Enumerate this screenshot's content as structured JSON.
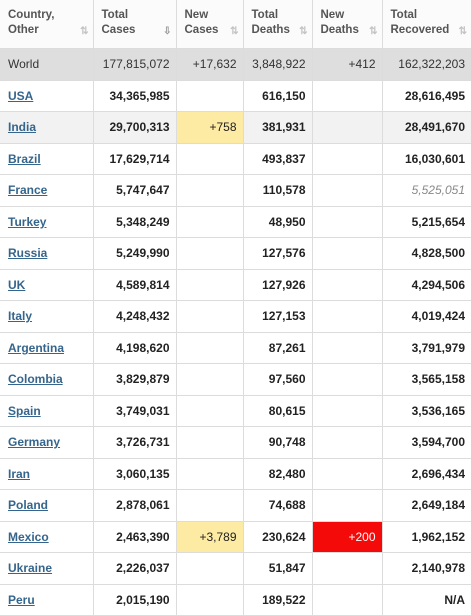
{
  "headers": [
    {
      "label": "Country,\nOther",
      "sort": "⇅",
      "active": false
    },
    {
      "label": "Total\nCases",
      "sort": "⇩",
      "active": true
    },
    {
      "label": "New\nCases",
      "sort": "⇅",
      "active": false
    },
    {
      "label": "Total\nDeaths",
      "sort": "⇅",
      "active": false
    },
    {
      "label": "New\nDeaths",
      "sort": "⇅",
      "active": false
    },
    {
      "label": "Total\nRecovered",
      "sort": "⇅",
      "active": false
    }
  ],
  "world": {
    "country": "World",
    "total_cases": "177,815,072",
    "new_cases": "+17,632",
    "total_deaths": "3,848,922",
    "new_deaths": "+412",
    "total_recovered": "162,322,203"
  },
  "rows": [
    {
      "country": "USA",
      "total_cases": "34,365,985",
      "new_cases": "",
      "total_deaths": "616,150",
      "new_deaths": "",
      "total_recovered": "28,616,495"
    },
    {
      "country": "India",
      "total_cases": "29,700,313",
      "new_cases": "+758",
      "total_deaths": "381,931",
      "new_deaths": "",
      "total_recovered": "28,491,670"
    },
    {
      "country": "Brazil",
      "total_cases": "17,629,714",
      "new_cases": "",
      "total_deaths": "493,837",
      "new_deaths": "",
      "total_recovered": "16,030,601"
    },
    {
      "country": "France",
      "total_cases": "5,747,647",
      "new_cases": "",
      "total_deaths": "110,578",
      "new_deaths": "",
      "total_recovered": "5,525,051"
    },
    {
      "country": "Turkey",
      "total_cases": "5,348,249",
      "new_cases": "",
      "total_deaths": "48,950",
      "new_deaths": "",
      "total_recovered": "5,215,654"
    },
    {
      "country": "Russia",
      "total_cases": "5,249,990",
      "new_cases": "",
      "total_deaths": "127,576",
      "new_deaths": "",
      "total_recovered": "4,828,500"
    },
    {
      "country": "UK",
      "total_cases": "4,589,814",
      "new_cases": "",
      "total_deaths": "127,926",
      "new_deaths": "",
      "total_recovered": "4,294,506"
    },
    {
      "country": "Italy",
      "total_cases": "4,248,432",
      "new_cases": "",
      "total_deaths": "127,153",
      "new_deaths": "",
      "total_recovered": "4,019,424"
    },
    {
      "country": "Argentina",
      "total_cases": "4,198,620",
      "new_cases": "",
      "total_deaths": "87,261",
      "new_deaths": "",
      "total_recovered": "3,791,979"
    },
    {
      "country": "Colombia",
      "total_cases": "3,829,879",
      "new_cases": "",
      "total_deaths": "97,560",
      "new_deaths": "",
      "total_recovered": "3,565,158"
    },
    {
      "country": "Spain",
      "total_cases": "3,749,031",
      "new_cases": "",
      "total_deaths": "80,615",
      "new_deaths": "",
      "total_recovered": "3,536,165"
    },
    {
      "country": "Germany",
      "total_cases": "3,726,731",
      "new_cases": "",
      "total_deaths": "90,748",
      "new_deaths": "",
      "total_recovered": "3,594,700"
    },
    {
      "country": "Iran",
      "total_cases": "3,060,135",
      "new_cases": "",
      "total_deaths": "82,480",
      "new_deaths": "",
      "total_recovered": "2,696,434"
    },
    {
      "country": "Poland",
      "total_cases": "2,878,061",
      "new_cases": "",
      "total_deaths": "74,688",
      "new_deaths": "",
      "total_recovered": "2,649,184"
    },
    {
      "country": "Mexico",
      "total_cases": "2,463,390",
      "new_cases": "+3,789",
      "total_deaths": "230,624",
      "new_deaths": "+200",
      "total_recovered": "1,962,152"
    },
    {
      "country": "Ukraine",
      "total_cases": "2,226,037",
      "new_cases": "",
      "total_deaths": "51,847",
      "new_deaths": "",
      "total_recovered": "2,140,978"
    },
    {
      "country": "Peru",
      "total_cases": "2,015,190",
      "new_cases": "",
      "total_deaths": "189,522",
      "new_deaths": "",
      "total_recovered": "N/A"
    }
  ],
  "styles": {
    "new_cases_highlight": "#fdeaa3",
    "new_deaths_highlight": "#f50a0a",
    "link_color": "#35658c",
    "world_row_bg": "#dedede",
    "italic_recovered_countries": [
      "France"
    ]
  }
}
